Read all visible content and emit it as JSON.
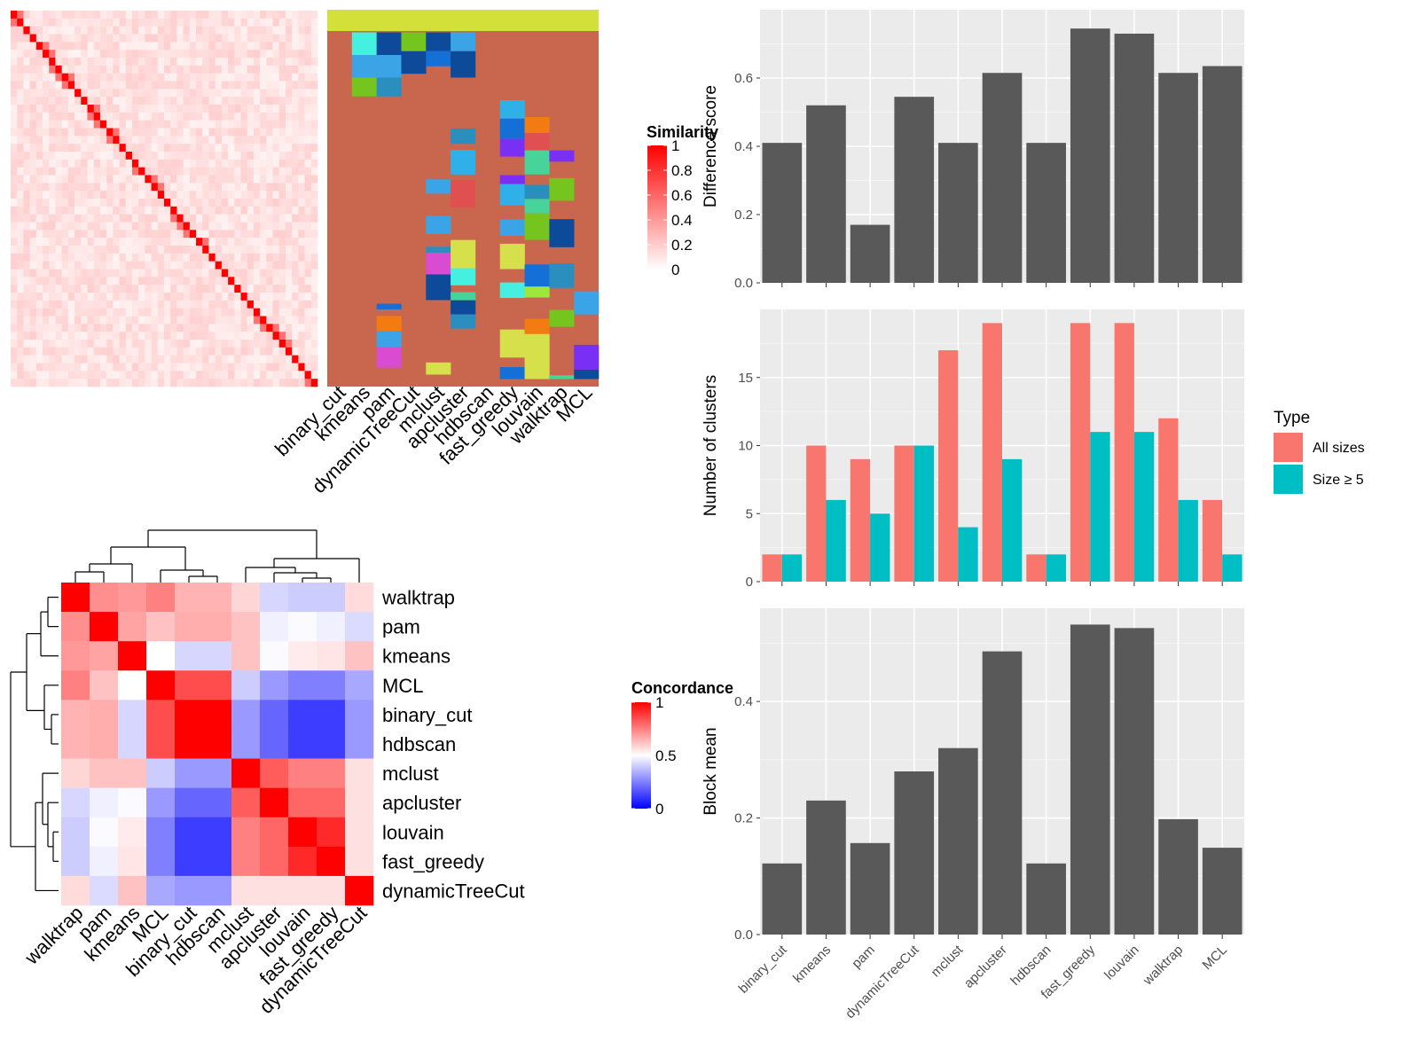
{
  "chart_data": [
    {
      "type": "heatmap",
      "name": "similarity-heatmap",
      "legend_title": "Similarity",
      "legend_ticks": [
        "1",
        "0.8",
        "0.6",
        "0.4",
        "0.2",
        "0"
      ],
      "color_low": "#ffffff",
      "color_high": "#ff0000"
    },
    {
      "type": "heatmap",
      "name": "cluster-assignment-matrix",
      "columns": [
        "binary_cut",
        "kmeans",
        "pam",
        "dynamicTreeCut",
        "mclust",
        "apcluster",
        "hdbscan",
        "fast_greedy",
        "louvain",
        "walktrap",
        "MCL"
      ],
      "top_bar_color": "#d4e03a",
      "background_color": "#c8674d",
      "segments": [
        {
          "col": "kmeans",
          "from": 0.06,
          "to": 0.12,
          "color": "#45f0e0"
        },
        {
          "col": "kmeans",
          "from": 0.12,
          "to": 0.18,
          "color": "#3aa4e6"
        },
        {
          "col": "kmeans",
          "from": 0.18,
          "to": 0.23,
          "color": "#76c51f"
        },
        {
          "col": "pam",
          "from": 0.06,
          "to": 0.12,
          "color": "#0e4a9a"
        },
        {
          "col": "pam",
          "from": 0.12,
          "to": 0.18,
          "color": "#3aa4e6"
        },
        {
          "col": "pam",
          "from": 0.18,
          "to": 0.23,
          "color": "#2a8fbf"
        },
        {
          "col": "dynamicTreeCut",
          "from": 0.06,
          "to": 0.11,
          "color": "#76c51f"
        },
        {
          "col": "dynamicTreeCut",
          "from": 0.11,
          "to": 0.17,
          "color": "#0e4a9a"
        },
        {
          "col": "mclust",
          "from": 0.06,
          "to": 0.11,
          "color": "#0e4a9a"
        },
        {
          "col": "mclust",
          "from": 0.11,
          "to": 0.15,
          "color": "#1470d6"
        },
        {
          "col": "apcluster",
          "from": 0.06,
          "to": 0.11,
          "color": "#3aa4e6"
        },
        {
          "col": "apcluster",
          "from": 0.11,
          "to": 0.18,
          "color": "#0e4a9a"
        }
      ]
    },
    {
      "type": "heatmap",
      "name": "concordance-heatmap",
      "rows": [
        "walktrap",
        "pam",
        "kmeans",
        "MCL",
        "binary_cut",
        "hdbscan",
        "mclust",
        "apcluster",
        "louvain",
        "fast_greedy",
        "dynamicTreeCut"
      ],
      "columns": [
        "walktrap",
        "pam",
        "kmeans",
        "MCL",
        "binary_cut",
        "hdbscan",
        "mclust",
        "apcluster",
        "louvain",
        "fast_greedy",
        "dynamicTreeCut"
      ],
      "values": [
        [
          1.0,
          0.72,
          0.7,
          0.75,
          0.65,
          0.65,
          0.58,
          0.42,
          0.4,
          0.4,
          0.57
        ],
        [
          0.72,
          1.0,
          0.68,
          0.62,
          0.66,
          0.66,
          0.62,
          0.47,
          0.49,
          0.47,
          0.43
        ],
        [
          0.7,
          0.68,
          1.0,
          0.5,
          0.42,
          0.42,
          0.62,
          0.49,
          0.54,
          0.55,
          0.62
        ],
        [
          0.75,
          0.62,
          0.5,
          1.0,
          0.85,
          0.85,
          0.4,
          0.3,
          0.25,
          0.25,
          0.33
        ],
        [
          0.65,
          0.66,
          0.42,
          0.85,
          1.0,
          1.0,
          0.3,
          0.2,
          0.12,
          0.12,
          0.3
        ],
        [
          0.65,
          0.66,
          0.42,
          0.85,
          1.0,
          1.0,
          0.3,
          0.2,
          0.12,
          0.12,
          0.3
        ],
        [
          0.58,
          0.62,
          0.62,
          0.4,
          0.3,
          0.3,
          1.0,
          0.82,
          0.75,
          0.75,
          0.56
        ],
        [
          0.42,
          0.47,
          0.49,
          0.3,
          0.2,
          0.2,
          0.82,
          1.0,
          0.8,
          0.8,
          0.56
        ],
        [
          0.4,
          0.49,
          0.54,
          0.25,
          0.12,
          0.12,
          0.75,
          0.8,
          1.0,
          0.92,
          0.56
        ],
        [
          0.4,
          0.47,
          0.55,
          0.25,
          0.12,
          0.12,
          0.75,
          0.8,
          0.92,
          1.0,
          0.56
        ],
        [
          0.57,
          0.43,
          0.62,
          0.33,
          0.3,
          0.3,
          0.56,
          0.56,
          0.56,
          0.56,
          1.0
        ]
      ],
      "legend_title": "Concordance",
      "legend_ticks": [
        "1",
        "0.5",
        "0"
      ],
      "color_low": "#0000ff",
      "color_mid": "#ffffff",
      "color_high": "#ff0000"
    },
    {
      "type": "bar",
      "name": "difference-score",
      "categories": [
        "binary_cut",
        "kmeans",
        "pam",
        "dynamicTreeCut",
        "mclust",
        "apcluster",
        "hdbscan",
        "fast_greedy",
        "louvain",
        "walktrap",
        "MCL"
      ],
      "values": [
        0.41,
        0.52,
        0.17,
        0.545,
        0.41,
        0.615,
        0.41,
        0.745,
        0.73,
        0.615,
        0.635
      ],
      "ylabel": "Difference score",
      "ylim": [
        0,
        0.8
      ],
      "yticks": [
        0.0,
        0.2,
        0.4,
        0.6
      ],
      "ytick_labels": [
        "0.0",
        "0.2",
        "0.4",
        "0.6"
      ],
      "bar_color": "#595959",
      "panel_color": "#ebebeb"
    },
    {
      "type": "bar",
      "name": "number-of-clusters",
      "categories": [
        "binary_cut",
        "kmeans",
        "pam",
        "dynamicTreeCut",
        "mclust",
        "apcluster",
        "hdbscan",
        "fast_greedy",
        "louvain",
        "walktrap",
        "MCL"
      ],
      "series": [
        {
          "name": "All sizes",
          "color": "#f8766d",
          "values": [
            2,
            10,
            9,
            10,
            17,
            19,
            2,
            19,
            19,
            12,
            6
          ]
        },
        {
          "name": "Size ≥ 5",
          "color": "#00bfc4",
          "values": [
            2,
            6,
            5,
            10,
            4,
            9,
            2,
            11,
            11,
            6,
            2
          ]
        }
      ],
      "ylabel": "Number of clusters",
      "ylim": [
        0,
        20
      ],
      "yticks": [
        0,
        5,
        10,
        15
      ],
      "ytick_labels": [
        "0",
        "5",
        "10",
        "15"
      ],
      "legend_title": "Type",
      "legend_position": "right",
      "panel_color": "#ebebeb"
    },
    {
      "type": "bar",
      "name": "block-mean",
      "categories": [
        "binary_cut",
        "kmeans",
        "pam",
        "dynamicTreeCut",
        "mclust",
        "apcluster",
        "hdbscan",
        "fast_greedy",
        "louvain",
        "walktrap",
        "MCL"
      ],
      "values": [
        0.122,
        0.23,
        0.157,
        0.28,
        0.32,
        0.486,
        0.122,
        0.532,
        0.526,
        0.198,
        0.149
      ],
      "ylabel": "Block mean",
      "ylim": [
        0,
        0.56
      ],
      "yticks": [
        0.0,
        0.2,
        0.4
      ],
      "ytick_labels": [
        "0.0",
        "0.2",
        "0.4"
      ],
      "bar_color": "#595959",
      "panel_color": "#ebebeb"
    }
  ]
}
